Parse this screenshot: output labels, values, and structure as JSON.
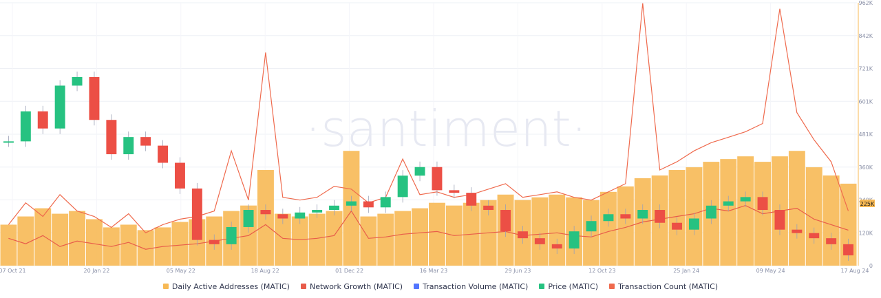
{
  "watermark": "·santiment·",
  "colors": {
    "daa": "#f7b955",
    "network_growth": "#e85c4a",
    "tx_volume": "#5275ff",
    "price_up": "#26c281",
    "price_down": "#ec4f45",
    "tx_count": "#ef6a4d"
  },
  "legend": [
    {
      "label": "Daily Active Addresses (MATIC)",
      "color": "#f7b955"
    },
    {
      "label": "Network Growth (MATIC)",
      "color": "#e85c4a"
    },
    {
      "label": "Transaction Volume (MATIC)",
      "color": "#5275ff"
    },
    {
      "label": "Price (MATIC)",
      "color": "#26c281"
    },
    {
      "label": "Transaction Count (MATIC)",
      "color": "#ef6a4d"
    }
  ],
  "current_value": "225K",
  "chart_data": {
    "type": "bar",
    "x_ticks": [
      "07 Oct 21",
      "20 Jan 22",
      "05 May 22",
      "18 Aug 22",
      "01 Dec 22",
      "16 Mar 23",
      "29 Jun 23",
      "12 Oct 23",
      "25 Jan 24",
      "09 May 24",
      "17 Aug 24"
    ],
    "y_ticks": [
      "962K",
      "842K",
      "721K",
      "601K",
      "481K",
      "360K",
      "240K",
      "120K",
      "0"
    ],
    "ylim": [
      0,
      962000
    ],
    "series": [
      {
        "name": "Daily Active Addresses (MATIC)",
        "type": "bar",
        "values": [
          150000,
          180000,
          210000,
          190000,
          200000,
          170000,
          140000,
          150000,
          130000,
          140000,
          160000,
          170000,
          180000,
          200000,
          220000,
          350000,
          190000,
          180000,
          190000,
          200000,
          420000,
          180000,
          190000,
          200000,
          210000,
          230000,
          220000,
          230000,
          240000,
          260000,
          240000,
          250000,
          260000,
          250000,
          240000,
          270000,
          290000,
          320000,
          330000,
          350000,
          360000,
          380000,
          390000,
          400000,
          380000,
          400000,
          420000,
          360000,
          330000,
          300000
        ]
      },
      {
        "name": "Network Growth (MATIC)",
        "type": "line",
        "values": [
          100000,
          80000,
          110000,
          70000,
          90000,
          80000,
          70000,
          85000,
          60000,
          70000,
          75000,
          80000,
          90000,
          100000,
          110000,
          150000,
          100000,
          95000,
          100000,
          110000,
          200000,
          100000,
          105000,
          115000,
          120000,
          125000,
          110000,
          115000,
          120000,
          125000,
          110000,
          115000,
          120000,
          110000,
          105000,
          125000,
          140000,
          160000,
          170000,
          180000,
          190000,
          210000,
          200000,
          220000,
          190000,
          200000,
          210000,
          170000,
          150000,
          130000
        ]
      },
      {
        "name": "Transaction Count (MATIC)",
        "type": "line",
        "values": [
          150000,
          230000,
          180000,
          260000,
          200000,
          180000,
          140000,
          190000,
          120000,
          150000,
          170000,
          180000,
          200000,
          420000,
          240000,
          780000,
          250000,
          240000,
          250000,
          290000,
          280000,
          230000,
          250000,
          390000,
          260000,
          270000,
          250000,
          260000,
          280000,
          300000,
          250000,
          260000,
          270000,
          250000,
          240000,
          270000,
          300000,
          960000,
          350000,
          380000,
          420000,
          450000,
          470000,
          490000,
          520000,
          940000,
          560000,
          460000,
          380000,
          200000
        ]
      },
      {
        "name": "Price (MATIC)",
        "type": "candlestick",
        "values": [
          1.75,
          2.1,
          1.9,
          2.4,
          2.5,
          2.0,
          1.6,
          1.8,
          1.7,
          1.5,
          1.2,
          0.6,
          0.55,
          0.75,
          0.95,
          0.9,
          0.85,
          0.92,
          0.95,
          1.0,
          1.05,
          0.98,
          1.1,
          1.35,
          1.45,
          1.18,
          1.15,
          1.0,
          0.95,
          0.7,
          0.62,
          0.55,
          0.5,
          0.7,
          0.82,
          0.9,
          0.85,
          0.95,
          0.8,
          0.72,
          0.85,
          1.0,
          1.05,
          1.1,
          0.95,
          0.72,
          0.68,
          0.62,
          0.55,
          0.42
        ]
      },
      {
        "name": "Transaction Volume (MATIC)",
        "type": "line",
        "values": []
      }
    ]
  }
}
